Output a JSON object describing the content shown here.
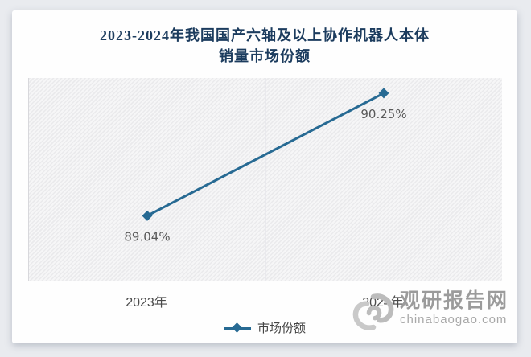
{
  "chart_data": {
    "type": "line",
    "title": "2023-2024年我国国产六轴及以上协作机器人本体销量市场份额",
    "title_line1": "2023-2024年我国国产六轴及以上协作机器人本体",
    "title_line2": "销量市场份额",
    "categories": [
      "2023年",
      "2024年"
    ],
    "series": [
      {
        "name": "市场份额",
        "values": [
          89.04,
          90.25
        ],
        "labels": [
          "89.04%",
          "90.25%"
        ]
      }
    ],
    "xlabel": "",
    "ylabel": "",
    "ylim": [
      88.4,
      90.4
    ],
    "grid": "single faint vertical divider at center, no y-axis ticks",
    "legend_position": "bottom-center",
    "marker": "diamond"
  },
  "legend": {
    "items": [
      {
        "label": "市场份额",
        "marker": "line-with-diamond"
      }
    ]
  },
  "watermark": {
    "brand": "观研报告网",
    "domain": "chinabaogao.com",
    "logo": "swirl-icon"
  },
  "colors": {
    "line": "#276a93",
    "title": "#1c3c5e",
    "data_label": "#595959",
    "axis_label": "#4a4a4a",
    "watermark_brand": "#9b9b9b",
    "watermark_domain": "#a8a8a8",
    "page_background": "#e9ebef",
    "card_background": "#fefefe"
  }
}
